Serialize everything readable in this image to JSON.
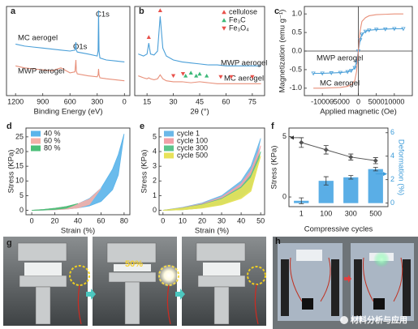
{
  "chart_data": [
    {
      "type": "line",
      "panel": "a",
      "x_label": "Binding Energy (eV)",
      "annotations": [
        "C1s",
        "O1s"
      ],
      "xlim": [
        1300,
        -60
      ],
      "xticks": [
        1200,
        900,
        600,
        300,
        0
      ],
      "ylim": [
        10,
        100
      ],
      "x": [
        1200,
        1100,
        1000,
        900,
        800,
        700,
        600,
        545,
        535,
        530,
        520,
        400,
        300,
        290,
        285,
        280,
        270,
        200,
        100,
        0
      ],
      "series": [
        {
          "name": "MC aerogel",
          "color": "#4a9fd8",
          "values": [
            62,
            60,
            59,
            58,
            57,
            56,
            55,
            56,
            64,
            56,
            54,
            52,
            50,
            55,
            96,
            55,
            48,
            46,
            45,
            44
          ]
        },
        {
          "name": "MWP aerogel",
          "color": "#e8907a",
          "values": [
            40,
            38,
            37,
            36,
            35,
            38,
            33,
            34,
            46,
            35,
            32,
            30,
            29,
            31,
            37,
            31,
            28,
            27,
            26,
            25
          ]
        }
      ]
    },
    {
      "type": "line",
      "panel": "b",
      "x_label": "2θ (°)",
      "xlim": [
        8,
        82
      ],
      "xticks": [
        15,
        30,
        45,
        60,
        75
      ],
      "ylim": [
        10,
        100
      ],
      "x": [
        10,
        13,
        15,
        16,
        17,
        19,
        21,
        22.5,
        24,
        26,
        30,
        35,
        40,
        45,
        50,
        55,
        60,
        65,
        70,
        75,
        80
      ],
      "series": [
        {
          "name": "MWP aerogel",
          "color": "#4a9fd8",
          "values": [
            52,
            50,
            52,
            63,
            52,
            51,
            55,
            90,
            58,
            50,
            46,
            44,
            43,
            42,
            41,
            41,
            40,
            40,
            40,
            40,
            40
          ]
        },
        {
          "name": "MC aerogel",
          "color": "#e8907a",
          "values": [
            30,
            28,
            27,
            28,
            27,
            26,
            27,
            31,
            27,
            25,
            24,
            24,
            23,
            24,
            23,
            22,
            22,
            22,
            22,
            22,
            22
          ]
        }
      ],
      "markers": [
        {
          "name": "cellulose",
          "color": "#e8504a",
          "symbol": "triangle-up",
          "x": [
            16,
            22.5
          ],
          "values": [
            69,
            96
          ]
        },
        {
          "name": "Fe₃C",
          "color": "#3cb878",
          "symbol": "triangle-up",
          "x": [
            37,
            40,
            43,
            45,
            49
          ],
          "values": [
            30,
            33,
            30,
            32,
            30
          ]
        },
        {
          "name": "Fe₃O₄",
          "color": "#e8504a",
          "symbol": "triangle-down",
          "x": [
            30,
            35.5,
            57,
            63,
            75
          ],
          "values": [
            30,
            32,
            29,
            29,
            29
          ]
        }
      ]
    },
    {
      "type": "line",
      "panel": "c",
      "x_label": "Applied magnetic (Oe)",
      "y_label": "Magnetization (emu g⁻¹)",
      "zero_lines": true,
      "xlim": [
        -15000,
        15000
      ],
      "xticks": [
        -10000,
        -5000,
        0,
        5000,
        10000
      ],
      "ylim": [
        -1.2,
        1.2
      ],
      "yticks": [
        {
          "value": -1,
          "label": "-1.0"
        },
        {
          "value": -0.5,
          "label": "-0.5"
        },
        {
          "value": 0,
          "label": "0.0"
        },
        {
          "value": 0.5,
          "label": "0.5"
        },
        {
          "value": 1,
          "label": "1.0"
        }
      ],
      "x": [
        -12500,
        -10000,
        -7500,
        -5000,
        -3000,
        -2000,
        -1000,
        -500,
        0,
        500,
        1000,
        2000,
        3000,
        5000,
        7500,
        10000,
        12500
      ],
      "series": [
        {
          "name": "MWP aerogel",
          "color": "#4a9fd8",
          "marker": true,
          "values": [
            -0.6,
            -0.6,
            -0.59,
            -0.58,
            -0.56,
            -0.53,
            -0.45,
            -0.3,
            0,
            0.3,
            0.45,
            0.53,
            0.56,
            0.58,
            0.59,
            0.6,
            0.6
          ]
        },
        {
          "name": "MC aerogel",
          "color": "#e8907a",
          "values": [
            -1,
            -1,
            -0.99,
            -0.98,
            -0.95,
            -0.9,
            -0.8,
            -0.55,
            0,
            0.55,
            0.8,
            0.9,
            0.95,
            0.98,
            0.99,
            1,
            1
          ]
        }
      ]
    },
    {
      "type": "hysteresis",
      "panel": "d",
      "x_label": "Strain (%)",
      "y_label": "Stress (KPa)",
      "xlim": [
        -5,
        85
      ],
      "xticks": [
        0,
        20,
        40,
        60,
        80
      ],
      "ylim": [
        -1.5,
        28
      ],
      "yticks": [
        0,
        5,
        10,
        15,
        20,
        25
      ],
      "series": [
        {
          "name": "40 %",
          "color": "#5ab4ea",
          "x": [
            0,
            10,
            20,
            30,
            40,
            50,
            60,
            70,
            75,
            80
          ],
          "values": [
            0,
            0.3,
            0.7,
            1.3,
            2.2,
            4,
            7.5,
            14,
            19,
            26
          ],
          "unloading": [
            0,
            0.1,
            0.2,
            0.4,
            0.8,
            1.5,
            3,
            7,
            12,
            26
          ]
        },
        {
          "name": "60 %",
          "color": "#f4b0a8",
          "x": [
            0,
            10,
            20,
            30,
            40,
            50,
            60
          ],
          "values": [
            0,
            0.3,
            0.7,
            1.3,
            2.2,
            3.8,
            7.5
          ],
          "unloading": [
            0,
            0.1,
            0.2,
            0.4,
            0.8,
            2,
            7.5
          ]
        },
        {
          "name": "80 %",
          "color": "#4cbf78",
          "x": [
            0,
            10,
            20,
            30,
            40
          ],
          "values": [
            0,
            0.3,
            0.7,
            1.3,
            2.3
          ],
          "unloading": [
            0,
            0.1,
            0.3,
            0.7,
            2.3
          ]
        }
      ]
    },
    {
      "type": "hysteresis",
      "panel": "e",
      "x_label": "Strain (%)",
      "y_label": "Stress (KPa)",
      "xlim": [
        -2,
        52
      ],
      "xticks": [
        0,
        10,
        20,
        30,
        40,
        50
      ],
      "ylim": [
        -0.3,
        5.6
      ],
      "yticks": [
        0,
        1,
        2,
        3,
        4,
        5
      ],
      "series": [
        {
          "name": "cycle 1",
          "color": "#6cb8e8",
          "x": [
            0,
            10,
            20,
            30,
            40,
            45,
            50
          ],
          "values": [
            0,
            0.2,
            0.5,
            1,
            2,
            3,
            4.9
          ],
          "unloading": [
            0,
            0.05,
            0.2,
            0.5,
            1.1,
            1.8,
            4.9
          ]
        },
        {
          "name": "cycle 100",
          "color": "#f2a0a8",
          "x": [
            0,
            10,
            20,
            30,
            40,
            45,
            50
          ],
          "values": [
            0,
            0.18,
            0.45,
            0.9,
            1.8,
            2.7,
            4.4
          ],
          "unloading": [
            0,
            0.05,
            0.18,
            0.45,
            1,
            1.6,
            4.4
          ]
        },
        {
          "name": "cycle 300",
          "color": "#5cc48c",
          "x": [
            0,
            10,
            20,
            30,
            40,
            45,
            50
          ],
          "values": [
            0,
            0.16,
            0.4,
            0.8,
            1.6,
            2.4,
            4
          ],
          "unloading": [
            0,
            0.04,
            0.16,
            0.4,
            0.9,
            1.4,
            4
          ]
        },
        {
          "name": "cycle 500",
          "color": "#e8e25a",
          "x": [
            0,
            10,
            20,
            30,
            40,
            45,
            50
          ],
          "values": [
            0,
            0.15,
            0.37,
            0.75,
            1.5,
            2.2,
            3.7
          ],
          "unloading": [
            0,
            0.04,
            0.15,
            0.37,
            0.8,
            1.3,
            3.7
          ]
        }
      ]
    },
    {
      "type": "bar-line",
      "panel": "f",
      "x_label": "Compressive cycles",
      "y_label": "Stress (KPa)",
      "y2_label": "Deformation (%)",
      "categories": [
        "1",
        "100",
        "300",
        "500"
      ],
      "ylim": [
        -0.8,
        5.7
      ],
      "yticks": [
        0,
        5
      ],
      "y2lim": [
        -0.3,
        6.4
      ],
      "y2ticks": [
        0,
        2,
        4,
        6
      ],
      "series": [
        {
          "type": "bar",
          "axis": "y2",
          "color": "#5aaee6",
          "values": [
            0.2,
            1.9,
            2.2,
            2.9
          ],
          "errors": [
            0.25,
            0.35,
            0.15,
            0.15
          ]
        },
        {
          "type": "line",
          "color": "#555555",
          "values": [
            4.5,
            3.9,
            3.3,
            3.0
          ],
          "errors": [
            0.4,
            0.35,
            0.25,
            0.25
          ]
        }
      ]
    }
  ],
  "photos": {
    "g": {
      "label": "g",
      "annotation": "50%"
    },
    "h": {
      "label": "h"
    }
  },
  "watermark": "材料分析与应用"
}
